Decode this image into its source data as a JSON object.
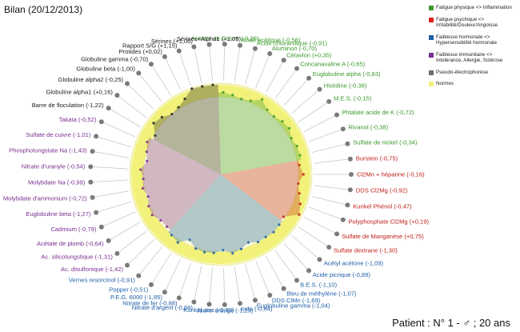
{
  "header": {
    "title": "Bilan  (20/12/2013)"
  },
  "footer": {
    "patient": "Patient : N° 1 - ♂ ; 20 ans"
  },
  "legend": [
    {
      "lines": [
        "Fatigue physique <> Inflammation"
      ],
      "color": "#3a9a2a"
    },
    {
      "lines": [
        "Fatigue psychique <>",
        "Irritabilité/Douleur/Angoisse"
      ],
      "color": "#e0201a"
    },
    {
      "lines": [
        "Faiblesse hormonale <>",
        "Hypersensibilité hormonale"
      ],
      "color": "#1f5fa8"
    },
    {
      "lines": [
        "Faiblesse immunitaire <>",
        "Intolérance, Allergie, Sclérose"
      ],
      "color": "#7b2f8f"
    },
    {
      "lines": [
        "Pseudo-électrophorèse"
      ],
      "color": "#6b6b6b"
    },
    {
      "lines": [
        "Normes"
      ],
      "color": "#f2f27a"
    }
  ],
  "chart_data": {
    "type": "radar",
    "title": "Bilan  (20/12/2013)",
    "groups": [
      {
        "name": "Fatigue physique <> Inflammation",
        "color": "#3a9a2a",
        "labels": [
          "Acétate de Cuivre (-0,26)",
          "Acide acétique (-0,56)",
          "Acide chloranilique (-0,91)",
          "Aluminon (-0,70)",
          "Cétavlon (+0,35)",
          "Concanavaline A (-0,65)",
          "Euglobuline alpha (-0,83)",
          "Histidine (-0,38)",
          "M.E.S. (-0,15)",
          "Phtalate acide de K (-0,72)",
          "Rivanol (-0,38)",
          "Sulfate de nickel (-0,34)"
        ],
        "values": [
          -0.26,
          -0.56,
          -0.91,
          -0.7,
          0.35,
          -0.65,
          -0.83,
          -0.38,
          -0.15,
          -0.72,
          -0.38,
          -0.34
        ]
      },
      {
        "name": "Fatigue psychique <> Irritabilité/Douleur/Angoisse",
        "color": "#c0201a",
        "labels": [
          "Burstein (-0,75)",
          "Cl2Mn + héparine (-0,16)",
          "DDS Cl2Mg (-0,92)",
          "Kunkel Phénol (-0,47)",
          "Polyphosphate Cl2Mg (+0,19)",
          "Sulfate de Manganèse (+0,75)",
          "Sulfate dextrane (-1,30)"
        ],
        "values": [
          -0.75,
          -0.16,
          -0.92,
          -0.47,
          0.19,
          0.75,
          -1.3
        ]
      },
      {
        "name": "Faiblesse hormonale <> Hypersensibilité hormonale",
        "color": "#1f5fa8",
        "labels": [
          "Acétyl acétone (-1,09)",
          "Acide picrique (-0,89)",
          "B.E.S. (-1,10)",
          "Bleu de méthylène (-1,07)",
          "DDS ClMn (-1,69)",
          "Euglobuline gamma (-1,04)",
          "Iode (-0,64)",
          "Jaune orange (-1,29)",
          "Kunkel zinc (-0,80)",
          "Nitrate d'argent (-0,68)",
          "Nitrate de fer (-0,88)",
          "P.E.G. 6000 (-1,85)",
          "Popper (-0,51)",
          "Vernes resorcinol (-0,91)"
        ],
        "values": [
          -1.09,
          -0.89,
          -1.1,
          -1.07,
          -1.69,
          -1.04,
          -0.64,
          -1.29,
          -0.8,
          -0.68,
          -0.88,
          -1.85,
          -0.51,
          -0.91
        ]
      },
      {
        "name": "Faiblesse immunitaire <> Intolérance, Allergie, Sclérose",
        "color": "#7b2f8f",
        "labels": [
          "Ac. disulfonique (-1,42)",
          "Ac. silicotungstique (-1,31)",
          "Acétate de plomb (-0,64)",
          "Cadmium (-0,79)",
          "Euglobuline beta (-1,27)",
          "Molybdate d'ammonium (-0,72)",
          "Molybdate Na (-0,99)",
          "Nitrate d'uranyle (-0,54)",
          "Phosphotungstate Na (-1,43)",
          "Sulfate de cuivre (-1,01)",
          "Takata (-0,52)"
        ],
        "values": [
          -1.42,
          -1.31,
          -0.64,
          -0.79,
          -1.27,
          -0.72,
          -0.99,
          -0.54,
          -1.43,
          -1.01,
          -0.52
        ]
      },
      {
        "name": "Pseudo-électrophorèse",
        "color": "#222222",
        "labels": [
          "Barre de floculation (-1,22)",
          "Globuline alpha1 (+0,16)",
          "Globuline alpha2 (-0,25)",
          "Globuline beta (-1,00)",
          "Globuline gamma (-0,70)",
          "Protides (+0,02)",
          "Rapport S/G (+1,15)",
          "Sérines (+1,06)",
          "Sérines+Alpha1 (+1,05)"
        ],
        "values": [
          -1.22,
          0.16,
          -0.25,
          -1.0,
          -0.7,
          0.02,
          1.15,
          1.06,
          1.05
        ]
      }
    ],
    "norms": {
      "label": "Normes",
      "range": [
        -1,
        1
      ],
      "color": "#f2f27a"
    }
  }
}
